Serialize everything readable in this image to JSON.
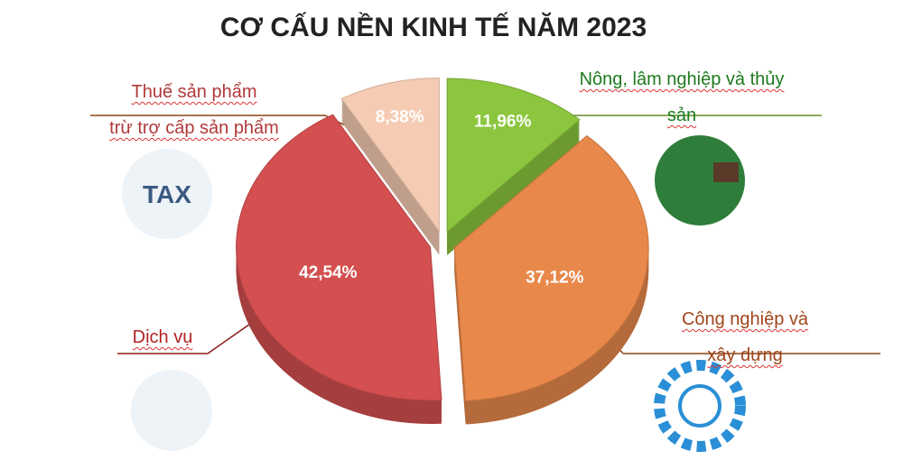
{
  "chart_data": {
    "type": "pie",
    "title": "CƠ CẤU NỀN KINH TẾ NĂM 2023",
    "categories": [
      "Nông, lâm nghiệp và thủy sản",
      "Công nghiệp và xây dựng",
      "Dịch vụ",
      "Thuế sản phẩm\ntrừ trợ cấp sản phẩm"
    ],
    "values": [
      11.96,
      37.12,
      42.54,
      8.38
    ],
    "value_labels": [
      "11,96%",
      "37,12%",
      "42,54%",
      "8,38%"
    ],
    "colors": [
      "#8cc63e",
      "#e8884b",
      "#d34f50",
      "#f5ccb3"
    ]
  }
}
